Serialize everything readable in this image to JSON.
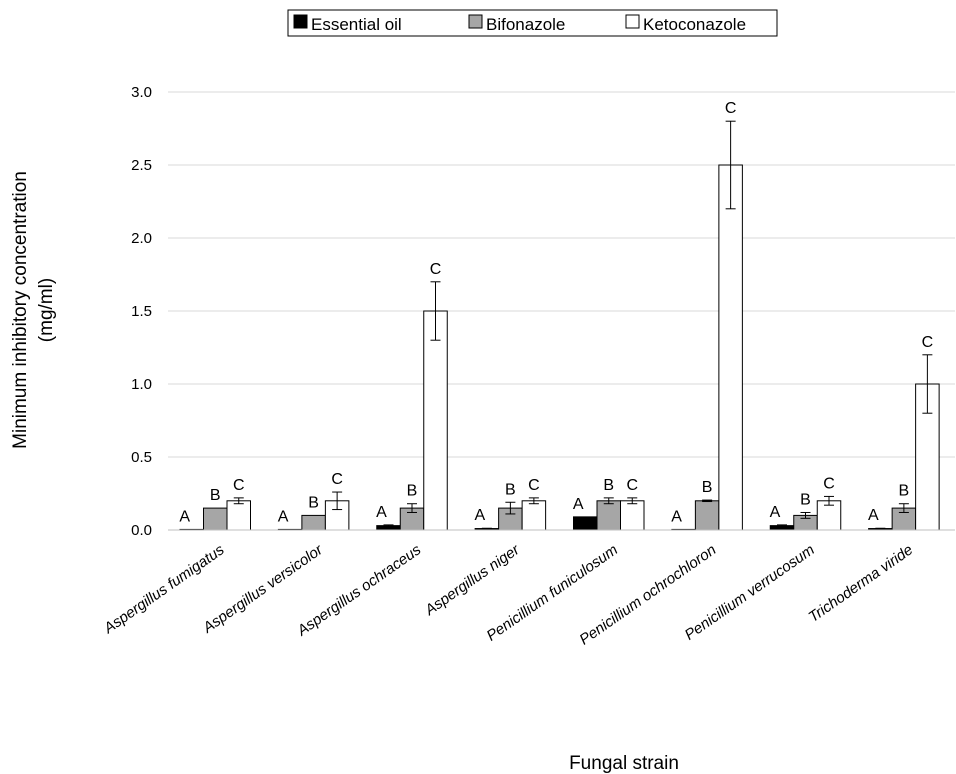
{
  "chart_data": {
    "type": "bar",
    "xlabel": "Fungal strain",
    "ylabel": [
      "Minimum inhibitory concentration",
      "(mg/ml)"
    ],
    "ylim": [
      0,
      3.0
    ],
    "yticks": [
      "0.0",
      "0.5",
      "1.0",
      "1.5",
      "2.0",
      "2.5",
      "3.0"
    ],
    "grid": "horizontal",
    "legend_position": "top",
    "categories": [
      "Aspergillus fumigatus",
      "Aspergillus versicolor",
      "Aspergillus ochraceus",
      "Aspergillus niger",
      "Penicillium funiculosum",
      "Penicillium ochrochloron",
      "Penicillium verrucosum",
      "Trichoderma viride"
    ],
    "series": [
      {
        "name": "Essential oil",
        "color": "#000000",
        "values": [
          0.004,
          0.004,
          0.03,
          0.01,
          0.09,
          0.004,
          0.03,
          0.01
        ],
        "errors": [
          0,
          0,
          0.005,
          0.002,
          0,
          0,
          0.005,
          0.002
        ],
        "letters": [
          "A",
          "A",
          "A",
          "A",
          "A",
          "A",
          "A",
          "A"
        ]
      },
      {
        "name": "Bifonazole",
        "color": "#a6a6a6",
        "values": [
          0.15,
          0.1,
          0.15,
          0.15,
          0.2,
          0.2,
          0.1,
          0.15
        ],
        "errors": [
          0,
          0,
          0.03,
          0.04,
          0.02,
          0.005,
          0.02,
          0.03
        ],
        "letters": [
          "B",
          "B",
          "B",
          "B",
          "B",
          "B",
          "B",
          "B"
        ]
      },
      {
        "name": "Ketoconazole",
        "color": "#ffffff",
        "values": [
          0.2,
          0.2,
          1.5,
          0.2,
          0.2,
          2.5,
          0.2,
          1.0
        ],
        "errors": [
          0.02,
          0.06,
          0.2,
          0.02,
          0.02,
          0.3,
          0.03,
          0.2
        ],
        "letters": [
          "C",
          "C",
          "C",
          "C",
          "C",
          "C",
          "C",
          "C"
        ]
      }
    ]
  }
}
